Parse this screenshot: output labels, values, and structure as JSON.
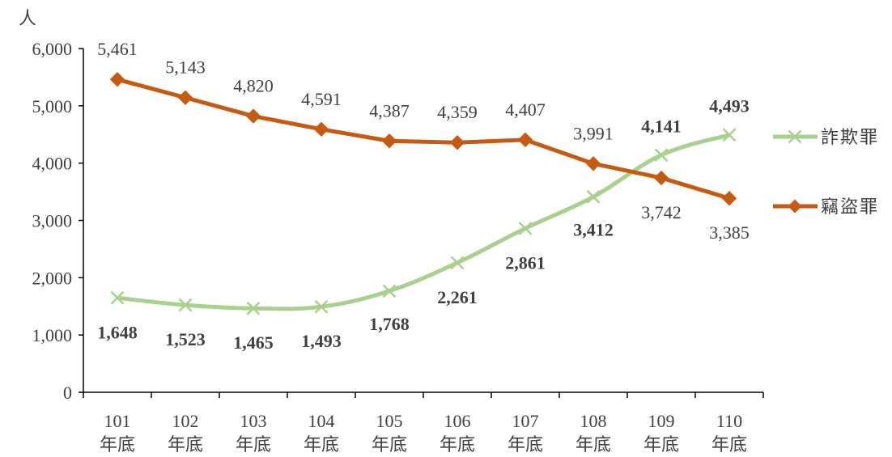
{
  "chart_data": {
    "type": "line",
    "y_unit": "人",
    "categories": [
      {
        "year": "101",
        "suffix": "年底"
      },
      {
        "year": "102",
        "suffix": "年底"
      },
      {
        "year": "103",
        "suffix": "年底"
      },
      {
        "year": "104",
        "suffix": "年底"
      },
      {
        "year": "105",
        "suffix": "年底"
      },
      {
        "year": "106",
        "suffix": "年底"
      },
      {
        "year": "107",
        "suffix": "年底"
      },
      {
        "year": "108",
        "suffix": "年底"
      },
      {
        "year": "109",
        "suffix": "年底"
      },
      {
        "year": "110",
        "suffix": "年底"
      }
    ],
    "ylim": [
      0,
      6000
    ],
    "yticks": [
      "0",
      "1,000",
      "2,000",
      "3,000",
      "4,000",
      "5,000",
      "6,000"
    ],
    "legend_position": "right",
    "grid": false,
    "series": [
      {
        "name": "詐欺罪",
        "color": "#a9d18e",
        "marker": "x",
        "smooth": true,
        "values": [
          1648,
          1523,
          1465,
          1493,
          1768,
          2261,
          2861,
          3412,
          4141,
          4493
        ],
        "labels": [
          "1,648",
          "1,523",
          "1,465",
          "1,493",
          "1,768",
          "2,261",
          "2,861",
          "3,412",
          "4,141",
          "4,493"
        ]
      },
      {
        "name": "竊盜罪",
        "color": "#c55a11",
        "marker": "diamond",
        "smooth": false,
        "values": [
          5461,
          5143,
          4820,
          4591,
          4387,
          4359,
          4407,
          3991,
          3742,
          3385
        ],
        "labels": [
          "5,461",
          "5,143",
          "4,820",
          "4,591",
          "4,387",
          "4,359",
          "4,407",
          "3,991",
          "3,742",
          "3,385"
        ]
      }
    ]
  }
}
